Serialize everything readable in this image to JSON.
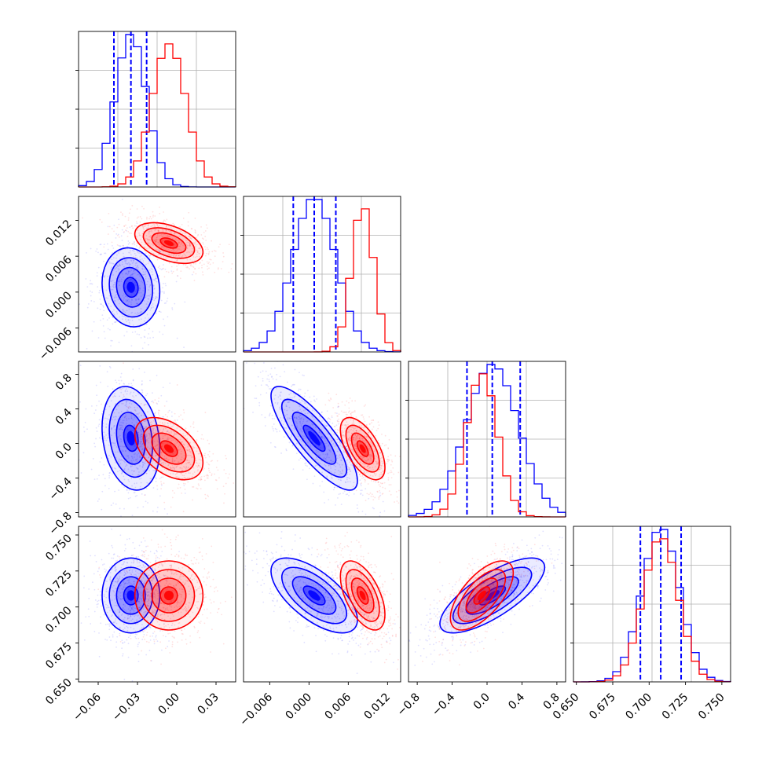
{
  "chart_data": [
    {
      "type": "histogram",
      "panel": "row1-col1",
      "xlim": [
        -0.075,
        0.045
      ],
      "series": [
        {
          "color": "#0000ff",
          "x": -0.035,
          "spread": 0.012,
          "quantiles": [
            -0.048,
            -0.035,
            -0.023
          ]
        },
        {
          "color": "#ff0000",
          "x": -0.006,
          "spread": 0.013
        }
      ],
      "grid": true
    },
    {
      "type": "contour-scatter",
      "panel": "row2-col1",
      "xlim": [
        -0.075,
        0.045
      ],
      "ylim": [
        -0.01,
        0.016
      ],
      "yticks": [
        "0.012",
        "0.006",
        "0.000",
        "−0.006"
      ],
      "series": [
        {
          "color": "#0000ff",
          "center": [
            -0.035,
            0.0008
          ],
          "spread": [
            0.011,
            0.0033
          ],
          "corr": -0.1
        },
        {
          "color": "#ff0000",
          "center": [
            -0.006,
            0.0082
          ],
          "spread": [
            0.013,
            0.0017
          ],
          "corr": -0.45
        }
      ]
    },
    {
      "type": "histogram",
      "panel": "row2-col2",
      "xlim": [
        -0.01,
        0.014
      ],
      "series": [
        {
          "color": "#0000ff",
          "x": 0.0008,
          "spread": 0.0033,
          "quantiles": [
            -0.0024,
            0.0008,
            0.0041
          ]
        },
        {
          "color": "#ff0000",
          "x": 0.0082,
          "spread": 0.0017
        }
      ],
      "grid": true
    },
    {
      "type": "contour-scatter",
      "panel": "row3-col1",
      "xlim": [
        -0.075,
        0.045
      ],
      "ylim": [
        -0.85,
        0.95
      ],
      "yticks": [
        "0.8",
        "0.4",
        "0.0",
        "−0.4",
        "−0.8"
      ],
      "series": [
        {
          "color": "#0000ff",
          "center": [
            -0.035,
            0.06
          ],
          "spread": [
            0.011,
            0.3
          ],
          "corr": -0.2
        },
        {
          "color": "#ff0000",
          "center": [
            -0.006,
            -0.06
          ],
          "spread": [
            0.013,
            0.18
          ],
          "corr": -0.45
        }
      ]
    },
    {
      "type": "contour-scatter",
      "panel": "row3-col2",
      "xlim": [
        -0.01,
        0.014
      ],
      "ylim": [
        -0.85,
        0.95
      ],
      "series": [
        {
          "color": "#0000ff",
          "center": [
            0.0008,
            0.06
          ],
          "spread": [
            0.0033,
            0.3
          ],
          "corr": -0.82
        },
        {
          "color": "#ff0000",
          "center": [
            0.0082,
            -0.06
          ],
          "spread": [
            0.0017,
            0.18
          ],
          "corr": -0.6
        }
      ]
    },
    {
      "type": "histogram",
      "panel": "row3-col3",
      "xlim": [
        -0.9,
        0.9
      ],
      "series": [
        {
          "color": "#0000ff",
          "x": 0.06,
          "spread": 0.3,
          "quantiles": [
            -0.23,
            0.06,
            0.38
          ]
        },
        {
          "color": "#ff0000",
          "x": -0.06,
          "spread": 0.18
        }
      ],
      "grid": true
    },
    {
      "type": "contour-scatter",
      "panel": "row4-col1",
      "xlim": [
        -0.075,
        0.045
      ],
      "ylim": [
        0.648,
        0.756
      ],
      "yticks": [
        "0.750",
        "0.725",
        "0.700",
        "0.675",
        "0.650"
      ],
      "xticks": [
        "−0.06",
        "−0.03",
        "0.00",
        "0.03"
      ],
      "series": [
        {
          "color": "#0000ff",
          "center": [
            -0.035,
            0.708
          ],
          "spread": [
            0.011,
            0.013
          ],
          "corr": 0.0
        },
        {
          "color": "#ff0000",
          "center": [
            -0.006,
            0.708
          ],
          "spread": [
            0.013,
            0.012
          ],
          "corr": 0.0
        }
      ]
    },
    {
      "type": "contour-scatter",
      "panel": "row4-col2",
      "xlim": [
        -0.01,
        0.014
      ],
      "ylim": [
        0.648,
        0.756
      ],
      "xticks": [
        "−0.006",
        "0.000",
        "0.006",
        "0.012"
      ],
      "series": [
        {
          "color": "#0000ff",
          "center": [
            0.0008,
            0.708
          ],
          "spread": [
            0.0033,
            0.013
          ],
          "corr": -0.65
        },
        {
          "color": "#ff0000",
          "center": [
            0.0082,
            0.708
          ],
          "spread": [
            0.0017,
            0.012
          ],
          "corr": -0.55
        }
      ]
    },
    {
      "type": "contour-scatter",
      "panel": "row4-col3",
      "xlim": [
        -0.9,
        0.9
      ],
      "ylim": [
        0.648,
        0.756
      ],
      "xticks": [
        "−0.8",
        "−0.4",
        "0.0",
        "0.4",
        "0.8"
      ],
      "series": [
        {
          "color": "#0000ff",
          "center": [
            0.06,
            0.708
          ],
          "spread": [
            0.3,
            0.013
          ],
          "corr": 0.75
        },
        {
          "color": "#ff0000",
          "center": [
            -0.06,
            0.708
          ],
          "spread": [
            0.18,
            0.012
          ],
          "corr": 0.65
        }
      ]
    },
    {
      "type": "histogram",
      "panel": "row4-col4",
      "xlim": [
        0.648,
        0.756
      ],
      "xticks": [
        "0.650",
        "0.675",
        "0.700",
        "0.725",
        "0.750"
      ],
      "series": [
        {
          "color": "#0000ff",
          "x": 0.708,
          "spread": 0.013,
          "quantiles": [
            0.694,
            0.708,
            0.722
          ]
        },
        {
          "color": "#ff0000",
          "x": 0.708,
          "spread": 0.012
        }
      ],
      "grid": true
    }
  ],
  "colors": {
    "blue": "#0000ff",
    "red": "#ff0000",
    "grid": "#b0b0b0"
  }
}
